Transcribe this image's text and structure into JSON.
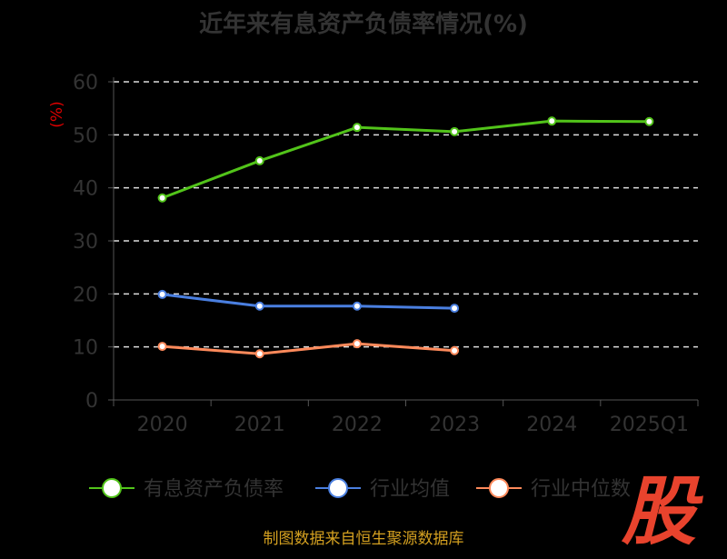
{
  "chart_data": {
    "type": "line",
    "title": "近年来有息资产负债率情况(%)",
    "ylabel": "(%)",
    "xlabel": "",
    "categories": [
      "2020",
      "2021",
      "2022",
      "2023",
      "2024",
      "2025Q1"
    ],
    "ylim": [
      0,
      60
    ],
    "yticks": [
      0,
      10,
      20,
      30,
      40,
      50,
      60
    ],
    "grid": true,
    "legend_position": "bottom",
    "series": [
      {
        "name": "有息资产负债率",
        "color": "#52c41a",
        "values": [
          38.1,
          45.1,
          51.4,
          50.6,
          52.6,
          52.5
        ]
      },
      {
        "name": "行业均值",
        "color": "#4a7fe0",
        "values": [
          19.9,
          17.7,
          17.7,
          17.3,
          null,
          null
        ]
      },
      {
        "name": "行业中位数",
        "color": "#ff8a5b",
        "values": [
          10.1,
          8.7,
          10.6,
          9.3,
          null,
          null
        ]
      }
    ]
  },
  "source": "制图数据来自恒生聚源数据库",
  "watermark": "股"
}
